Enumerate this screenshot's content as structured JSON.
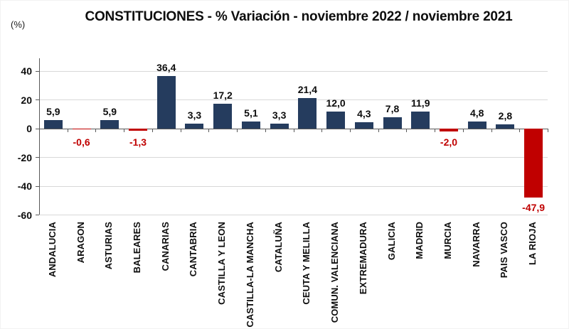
{
  "chart_data": {
    "type": "bar",
    "title": "CONSTITUCIONES - % Variación - noviembre 2022 / noviembre 2021",
    "unit_label": "(%)",
    "categories": [
      "ANDALUCIA",
      "ARAGON",
      "ASTURIAS",
      "BALEARES",
      "CANARIAS",
      "CANTABRIA",
      "CASTILLA Y LEON",
      "CASTILLA-LA MANCHA",
      "CATALUÑA",
      "CEUTA Y MELILLA",
      "COMUN. VALENCIANA",
      "EXTREMADURA",
      "GALICIA",
      "MADRID",
      "MURCIA",
      "NAVARRA",
      "PAIS VASCO",
      "LA RIOJA"
    ],
    "values": [
      5.9,
      -0.6,
      5.9,
      -1.3,
      36.4,
      3.3,
      17.2,
      5.1,
      3.3,
      21.4,
      12.0,
      4.3,
      7.8,
      11.9,
      -2.0,
      4.8,
      2.8,
      -47.9
    ],
    "value_labels": [
      "5,9",
      "-0,6",
      "5,9",
      "-1,3",
      "36,4",
      "3,3",
      "17,2",
      "5,1",
      "3,3",
      "21,4",
      "12,0",
      "4,3",
      "7,8",
      "11,9",
      "-2,0",
      "4,8",
      "2,8",
      "-47,9"
    ],
    "ylim": [
      -60,
      40
    ],
    "yticks": [
      40,
      20,
      0,
      -20,
      -40,
      -60
    ],
    "grid": true,
    "legend": "none",
    "positive_color": "#253C5E",
    "negative_color": "#C00000",
    "negative_label_color": "#C00000",
    "gridline_color": "#d8d8d8",
    "axis_color": "#595959"
  }
}
